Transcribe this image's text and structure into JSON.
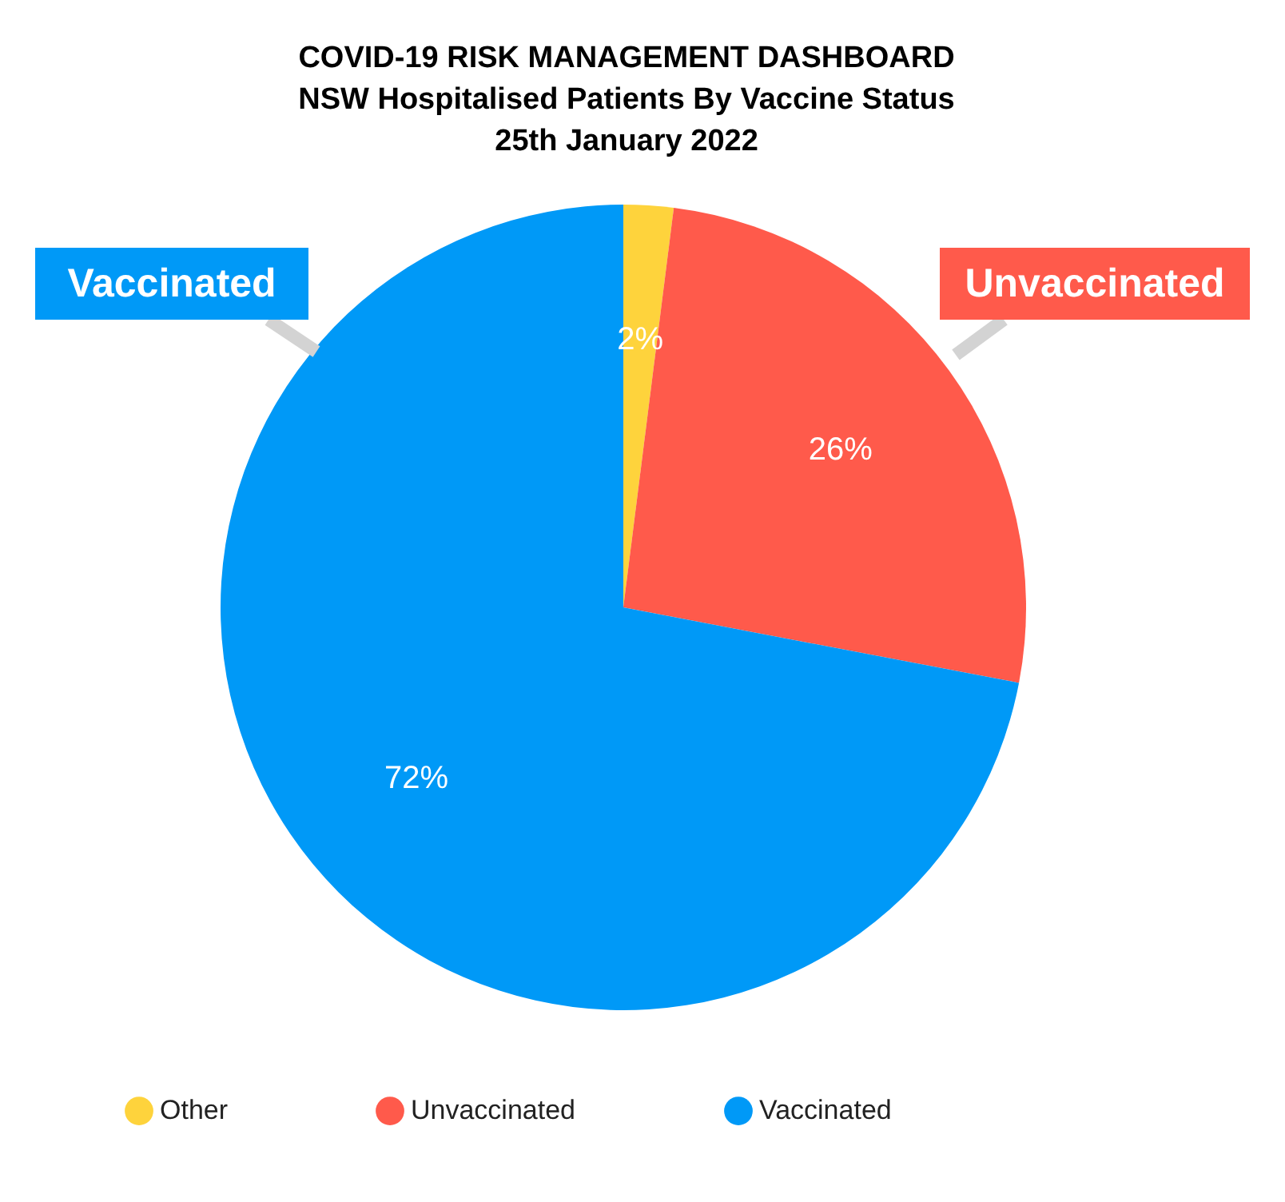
{
  "chart_data": {
    "type": "pie",
    "title": "COVID-19 RISK MANAGEMENT DASHBOARD",
    "subtitle": "NSW Hospitalised Patients By Vaccine Status\n25th January 2022",
    "categories": [
      "Other",
      "Unvaccinated",
      "Vaccinated"
    ],
    "values": [
      2,
      26,
      72
    ],
    "colors": [
      "#fed33c",
      "#ff5a4b",
      "#0099f7"
    ],
    "value_labels": [
      "2%",
      "26%",
      "72%"
    ],
    "annotations": [
      "Vaccinated",
      "Unvaccinated"
    ],
    "legend": "bottom"
  }
}
